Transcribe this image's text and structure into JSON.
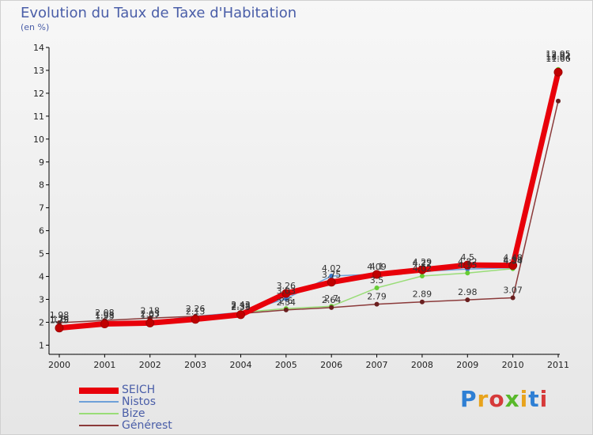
{
  "chart_data": {
    "type": "line",
    "title": "Evolution du Taux de Taxe d'Habitation",
    "subtitle": "(en %)",
    "xlabel": "",
    "ylabel": "",
    "ylim": [
      1,
      14
    ],
    "yticks": [
      "1",
      "2",
      "3",
      "4",
      "5",
      "6",
      "7",
      "8",
      "9",
      "10",
      "11",
      "12",
      "13",
      "14"
    ],
    "categories": [
      "2000",
      "2001",
      "2002",
      "2003",
      "2004",
      "2005",
      "2006",
      "2007",
      "2008",
      "2009",
      "2010",
      "2011"
    ],
    "series": [
      {
        "name": "SEICH",
        "color": "#e8000a",
        "marker": "#c00000",
        "values": [
          1.75,
          1.93,
          1.97,
          2.13,
          2.33,
          3.26,
          3.75,
          4.09,
          4.29,
          4.5,
          4.48,
          12.92
        ]
      },
      {
        "name": "Nistos",
        "color": "#6ea0d8",
        "marker": "#3a78c8",
        "values": [
          1.79,
          1.98,
          2.03,
          2.26,
          2.43,
          3.03,
          4.02,
          4.1,
          4.22,
          4.32,
          4.38,
          12.95
        ]
      },
      {
        "name": "Bize",
        "color": "#99dd77",
        "marker": "#66cc33",
        "values": [
          1.8,
          1.88,
          2.01,
          2.2,
          2.43,
          2.6,
          2.7,
          3.5,
          4.02,
          4.15,
          4.34,
          13.04
        ]
      },
      {
        "name": "Générest",
        "color": "#8b3a3a",
        "marker": "#6a1f1f",
        "values": [
          1.98,
          2.08,
          2.18,
          2.26,
          2.38,
          2.54,
          2.64,
          2.79,
          2.89,
          2.98,
          3.07,
          11.66
        ]
      }
    ],
    "data_labels": [
      {
        "year": "2000",
        "labels": [
          "1.98",
          "1.8",
          "1.79",
          "1.75"
        ]
      },
      {
        "year": "2001",
        "labels": [
          "2.08",
          "1.98",
          "1.93"
        ]
      },
      {
        "year": "2002",
        "labels": [
          "2.18",
          "2.03",
          "1.97"
        ]
      },
      {
        "year": "2003",
        "labels": [
          "2.26",
          "2.13"
        ]
      },
      {
        "year": "2004",
        "labels": [
          "2.43",
          "2.38",
          "2.33"
        ]
      },
      {
        "year": "2005",
        "labels": [
          "3.26",
          "3.03",
          "2.6",
          "2.54"
        ]
      },
      {
        "year": "2006",
        "labels": [
          "4.02",
          "3.75",
          "2.7",
          "2.64"
        ]
      },
      {
        "year": "2007",
        "labels": [
          "4.09",
          "4.1",
          "3.5",
          "2.79"
        ]
      },
      {
        "year": "2008",
        "labels": [
          "4.29",
          "4.22",
          "4.02",
          "2.89"
        ]
      },
      {
        "year": "2009",
        "labels": [
          "4.5",
          "4.32",
          "4.15",
          "2.98"
        ]
      },
      {
        "year": "2010",
        "labels": [
          "4.48",
          "4.38",
          "4.34",
          "3.07"
        ]
      },
      {
        "year": "2011",
        "labels": [
          "12.95",
          "12.92",
          "13.04",
          "11.66"
        ]
      }
    ],
    "grid": false,
    "legend_position": "bottom-left"
  },
  "legend": [
    {
      "label": "SEICH"
    },
    {
      "label": "Nistos"
    },
    {
      "label": "Bize"
    },
    {
      "label": "Générest"
    }
  ],
  "brand": {
    "logo_text": "Proxiti",
    "logo_colors": [
      "#2e7fd4",
      "#e8a31c",
      "#d63a3a",
      "#58b82a",
      "#e8a31c",
      "#2e7fd4",
      "#d63a3a"
    ]
  }
}
